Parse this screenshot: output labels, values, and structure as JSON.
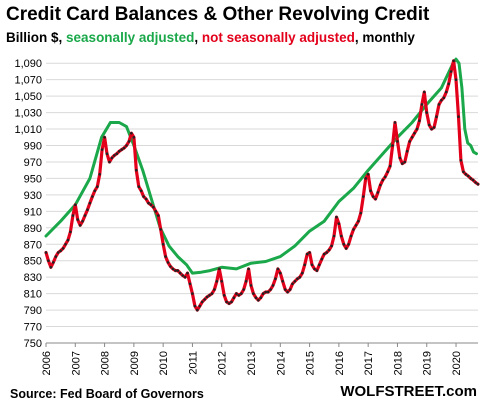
{
  "title": "Credit Card Balances & Other Revolving Credit",
  "subtitle": {
    "unit": "Billion $,",
    "sa": "seasonally adjusted",
    "sep": ",",
    "nsa": "not seasonally adjusted",
    "freq": ", monthly"
  },
  "source": "Source: Fed Board of Governors",
  "brand": "WOLFSTREET.com",
  "colors": {
    "sa": "#1aa84a",
    "nsa": "#e3001b",
    "points": "#222222",
    "grid": "#d9d9d9"
  },
  "chart_data": {
    "type": "line",
    "ylim": [
      750,
      1100
    ],
    "yticks": [
      750,
      770,
      790,
      810,
      830,
      850,
      870,
      890,
      910,
      930,
      950,
      970,
      990,
      1010,
      1030,
      1050,
      1070,
      1090
    ],
    "ytick_labels": [
      "750",
      "770",
      "790",
      "810",
      "830",
      "850",
      "870",
      "890",
      "910",
      "930",
      "950",
      "970",
      "990",
      "1,010",
      "1,030",
      "1,050",
      "1,070",
      "1,090"
    ],
    "xlim": [
      2006,
      2020.75
    ],
    "xticks": [
      2006,
      2007,
      2008,
      2009,
      2010,
      2011,
      2012,
      2013,
      2014,
      2015,
      2016,
      2017,
      2018,
      2019,
      2020
    ],
    "xtick_labels": [
      "2006",
      "2007",
      "2008",
      "2009",
      "2010",
      "2011",
      "2012",
      "2013",
      "2014",
      "2015",
      "2016",
      "2017",
      "2018",
      "2019",
      "2020"
    ],
    "series": [
      {
        "name": "seasonally adjusted",
        "key": "sa",
        "x": [
          2006.0,
          2006.5,
          2007.0,
          2007.5,
          2007.9,
          2008.2,
          2008.5,
          2008.75,
          2009.0,
          2009.3,
          2009.6,
          2009.9,
          2010.2,
          2010.5,
          2010.8,
          2011.0,
          2011.3,
          2011.6,
          2012.0,
          2012.5,
          2013.0,
          2013.5,
          2014.0,
          2014.5,
          2015.0,
          2015.5,
          2016.0,
          2016.5,
          2017.0,
          2017.5,
          2018.0,
          2018.5,
          2019.0,
          2019.5,
          2019.9,
          2020.0,
          2020.1,
          2020.2,
          2020.3,
          2020.4,
          2020.5,
          2020.6,
          2020.7
        ],
        "y": [
          880,
          898,
          918,
          950,
          1000,
          1018,
          1018,
          1013,
          990,
          960,
          925,
          890,
          868,
          855,
          845,
          835,
          836,
          838,
          842,
          840,
          847,
          849,
          855,
          868,
          886,
          898,
          922,
          938,
          960,
          980,
          1000,
          1018,
          1040,
          1060,
          1090,
          1095,
          1090,
          1060,
          1010,
          993,
          990,
          982,
          980
        ]
      },
      {
        "name": "not seasonally adjusted",
        "key": "nsa",
        "x": [
          2006.0,
          2006.083,
          2006.167,
          2006.25,
          2006.333,
          2006.417,
          2006.5,
          2006.583,
          2006.667,
          2006.75,
          2006.833,
          2006.917,
          2007.0,
          2007.083,
          2007.167,
          2007.25,
          2007.333,
          2007.417,
          2007.5,
          2007.583,
          2007.667,
          2007.75,
          2007.833,
          2007.917,
          2008.0,
          2008.083,
          2008.167,
          2008.25,
          2008.333,
          2008.417,
          2008.5,
          2008.583,
          2008.667,
          2008.75,
          2008.833,
          2008.917,
          2009.0,
          2009.083,
          2009.167,
          2009.25,
          2009.333,
          2009.417,
          2009.5,
          2009.583,
          2009.667,
          2009.75,
          2009.833,
          2009.917,
          2010.0,
          2010.083,
          2010.167,
          2010.25,
          2010.333,
          2010.417,
          2010.5,
          2010.583,
          2010.667,
          2010.75,
          2010.833,
          2010.917,
          2011.0,
          2011.083,
          2011.167,
          2011.25,
          2011.333,
          2011.417,
          2011.5,
          2011.583,
          2011.667,
          2011.75,
          2011.833,
          2011.917,
          2012.0,
          2012.083,
          2012.167,
          2012.25,
          2012.333,
          2012.417,
          2012.5,
          2012.583,
          2012.667,
          2012.75,
          2012.833,
          2012.917,
          2013.0,
          2013.083,
          2013.167,
          2013.25,
          2013.333,
          2013.417,
          2013.5,
          2013.583,
          2013.667,
          2013.75,
          2013.833,
          2013.917,
          2014.0,
          2014.083,
          2014.167,
          2014.25,
          2014.333,
          2014.417,
          2014.5,
          2014.583,
          2014.667,
          2014.75,
          2014.833,
          2014.917,
          2015.0,
          2015.083,
          2015.167,
          2015.25,
          2015.333,
          2015.417,
          2015.5,
          2015.583,
          2015.667,
          2015.75,
          2015.833,
          2015.917,
          2016.0,
          2016.083,
          2016.167,
          2016.25,
          2016.333,
          2016.417,
          2016.5,
          2016.583,
          2016.667,
          2016.75,
          2016.833,
          2016.917,
          2017.0,
          2017.083,
          2017.167,
          2017.25,
          2017.333,
          2017.417,
          2017.5,
          2017.583,
          2017.667,
          2017.75,
          2017.833,
          2017.917,
          2018.0,
          2018.083,
          2018.167,
          2018.25,
          2018.333,
          2018.417,
          2018.5,
          2018.583,
          2018.667,
          2018.75,
          2018.833,
          2018.917,
          2019.0,
          2019.083,
          2019.167,
          2019.25,
          2019.333,
          2019.417,
          2019.5,
          2019.583,
          2019.667,
          2019.75,
          2019.833,
          2019.917,
          2020.0,
          2020.083,
          2020.167,
          2020.25,
          2020.333,
          2020.417,
          2020.5,
          2020.583,
          2020.667,
          2020.75
        ],
        "y": [
          860,
          850,
          842,
          848,
          855,
          860,
          862,
          865,
          870,
          875,
          885,
          905,
          918,
          900,
          893,
          898,
          905,
          912,
          920,
          928,
          935,
          940,
          955,
          985,
          1000,
          980,
          970,
          975,
          978,
          980,
          983,
          985,
          987,
          990,
          995,
          1005,
          1000,
          960,
          940,
          935,
          928,
          925,
          920,
          918,
          915,
          910,
          905,
          888,
          870,
          855,
          848,
          843,
          840,
          838,
          838,
          835,
          832,
          830,
          835,
          822,
          810,
          795,
          790,
          795,
          800,
          803,
          806,
          808,
          810,
          815,
          825,
          840,
          825,
          808,
          800,
          798,
          800,
          805,
          810,
          808,
          810,
          815,
          825,
          840,
          820,
          810,
          805,
          802,
          805,
          810,
          812,
          812,
          815,
          820,
          828,
          840,
          835,
          825,
          815,
          812,
          815,
          822,
          825,
          828,
          830,
          835,
          845,
          858,
          860,
          845,
          840,
          838,
          845,
          852,
          858,
          860,
          863,
          868,
          880,
          903,
          895,
          880,
          870,
          865,
          870,
          880,
          888,
          893,
          898,
          908,
          928,
          950,
          955,
          935,
          928,
          925,
          933,
          942,
          948,
          952,
          958,
          965,
          990,
          1018,
          995,
          975,
          968,
          970,
          983,
          995,
          1000,
          1005,
          1010,
          1020,
          1040,
          1055,
          1030,
          1015,
          1010,
          1012,
          1025,
          1040,
          1045,
          1048,
          1055,
          1065,
          1080,
          1093,
          1070,
          1025,
          972,
          958,
          955,
          953,
          950,
          948,
          945,
          943
        ]
      }
    ]
  }
}
